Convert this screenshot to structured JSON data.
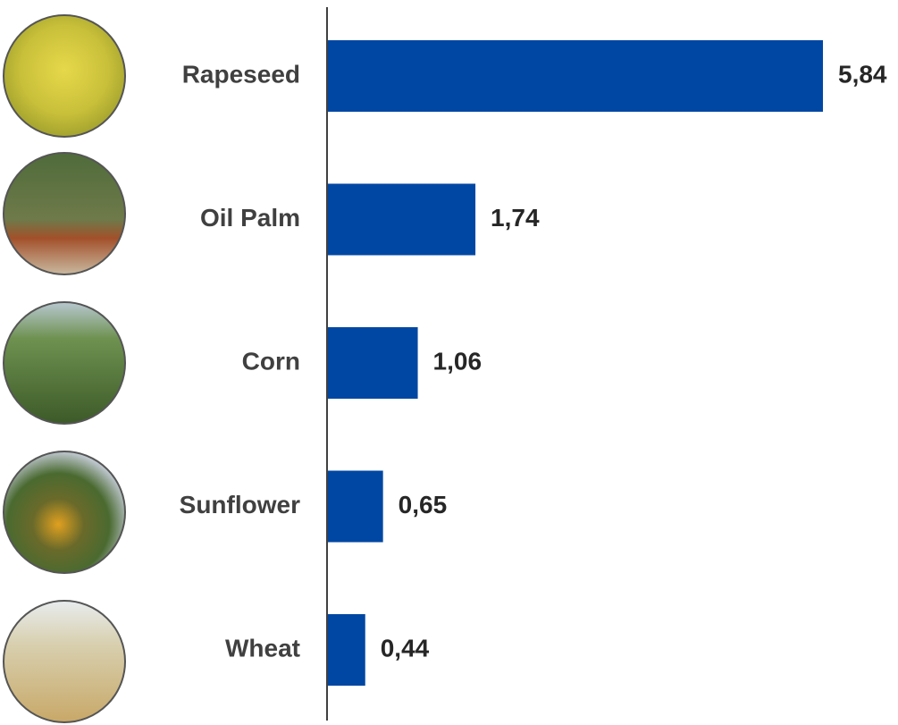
{
  "chart_data": {
    "type": "bar",
    "orientation": "horizontal",
    "categories": [
      "Rapeseed",
      "Oil Palm",
      "Corn",
      "Sunflower",
      "Wheat"
    ],
    "values": [
      5.84,
      1.74,
      1.06,
      0.65,
      0.44
    ],
    "value_labels": [
      "5,84",
      "1,74",
      "1,06",
      "0,65",
      "0,44"
    ],
    "color": "#0047a3"
  }
}
